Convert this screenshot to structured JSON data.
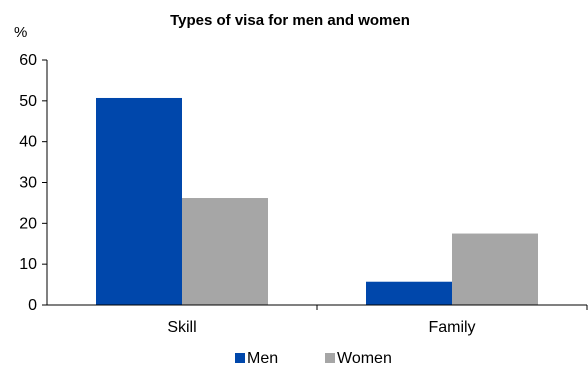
{
  "chart_data": {
    "type": "bar",
    "title": "Types of visa for men and women",
    "ylabel": "%",
    "xlabel": "",
    "categories": [
      "Skill",
      "Family"
    ],
    "series": [
      {
        "name": "Men",
        "values": [
          50.7,
          5.7
        ],
        "color": "#0047AB"
      },
      {
        "name": "Women",
        "values": [
          26.2,
          17.5
        ],
        "color": "#A6A6A6"
      }
    ],
    "ylim": [
      0,
      60
    ],
    "yticks": [
      "0",
      "10",
      "20",
      "30",
      "40",
      "50",
      "60"
    ],
    "grid": false,
    "legend_position": "bottom"
  }
}
